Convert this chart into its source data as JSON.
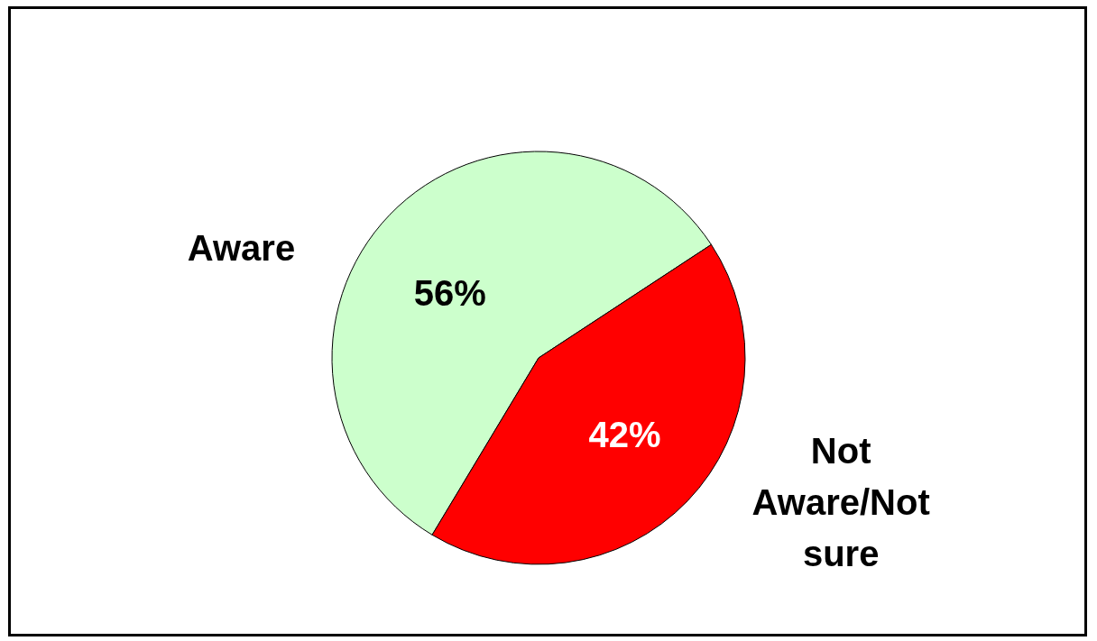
{
  "chart_data": {
    "type": "pie",
    "categories": [
      "Aware",
      "Not Aware/Not sure"
    ],
    "values": [
      56,
      42
    ],
    "colors": [
      "#ccffcc",
      "#ff0000"
    ],
    "value_labels": [
      "56%",
      "42%"
    ],
    "legend": false
  }
}
